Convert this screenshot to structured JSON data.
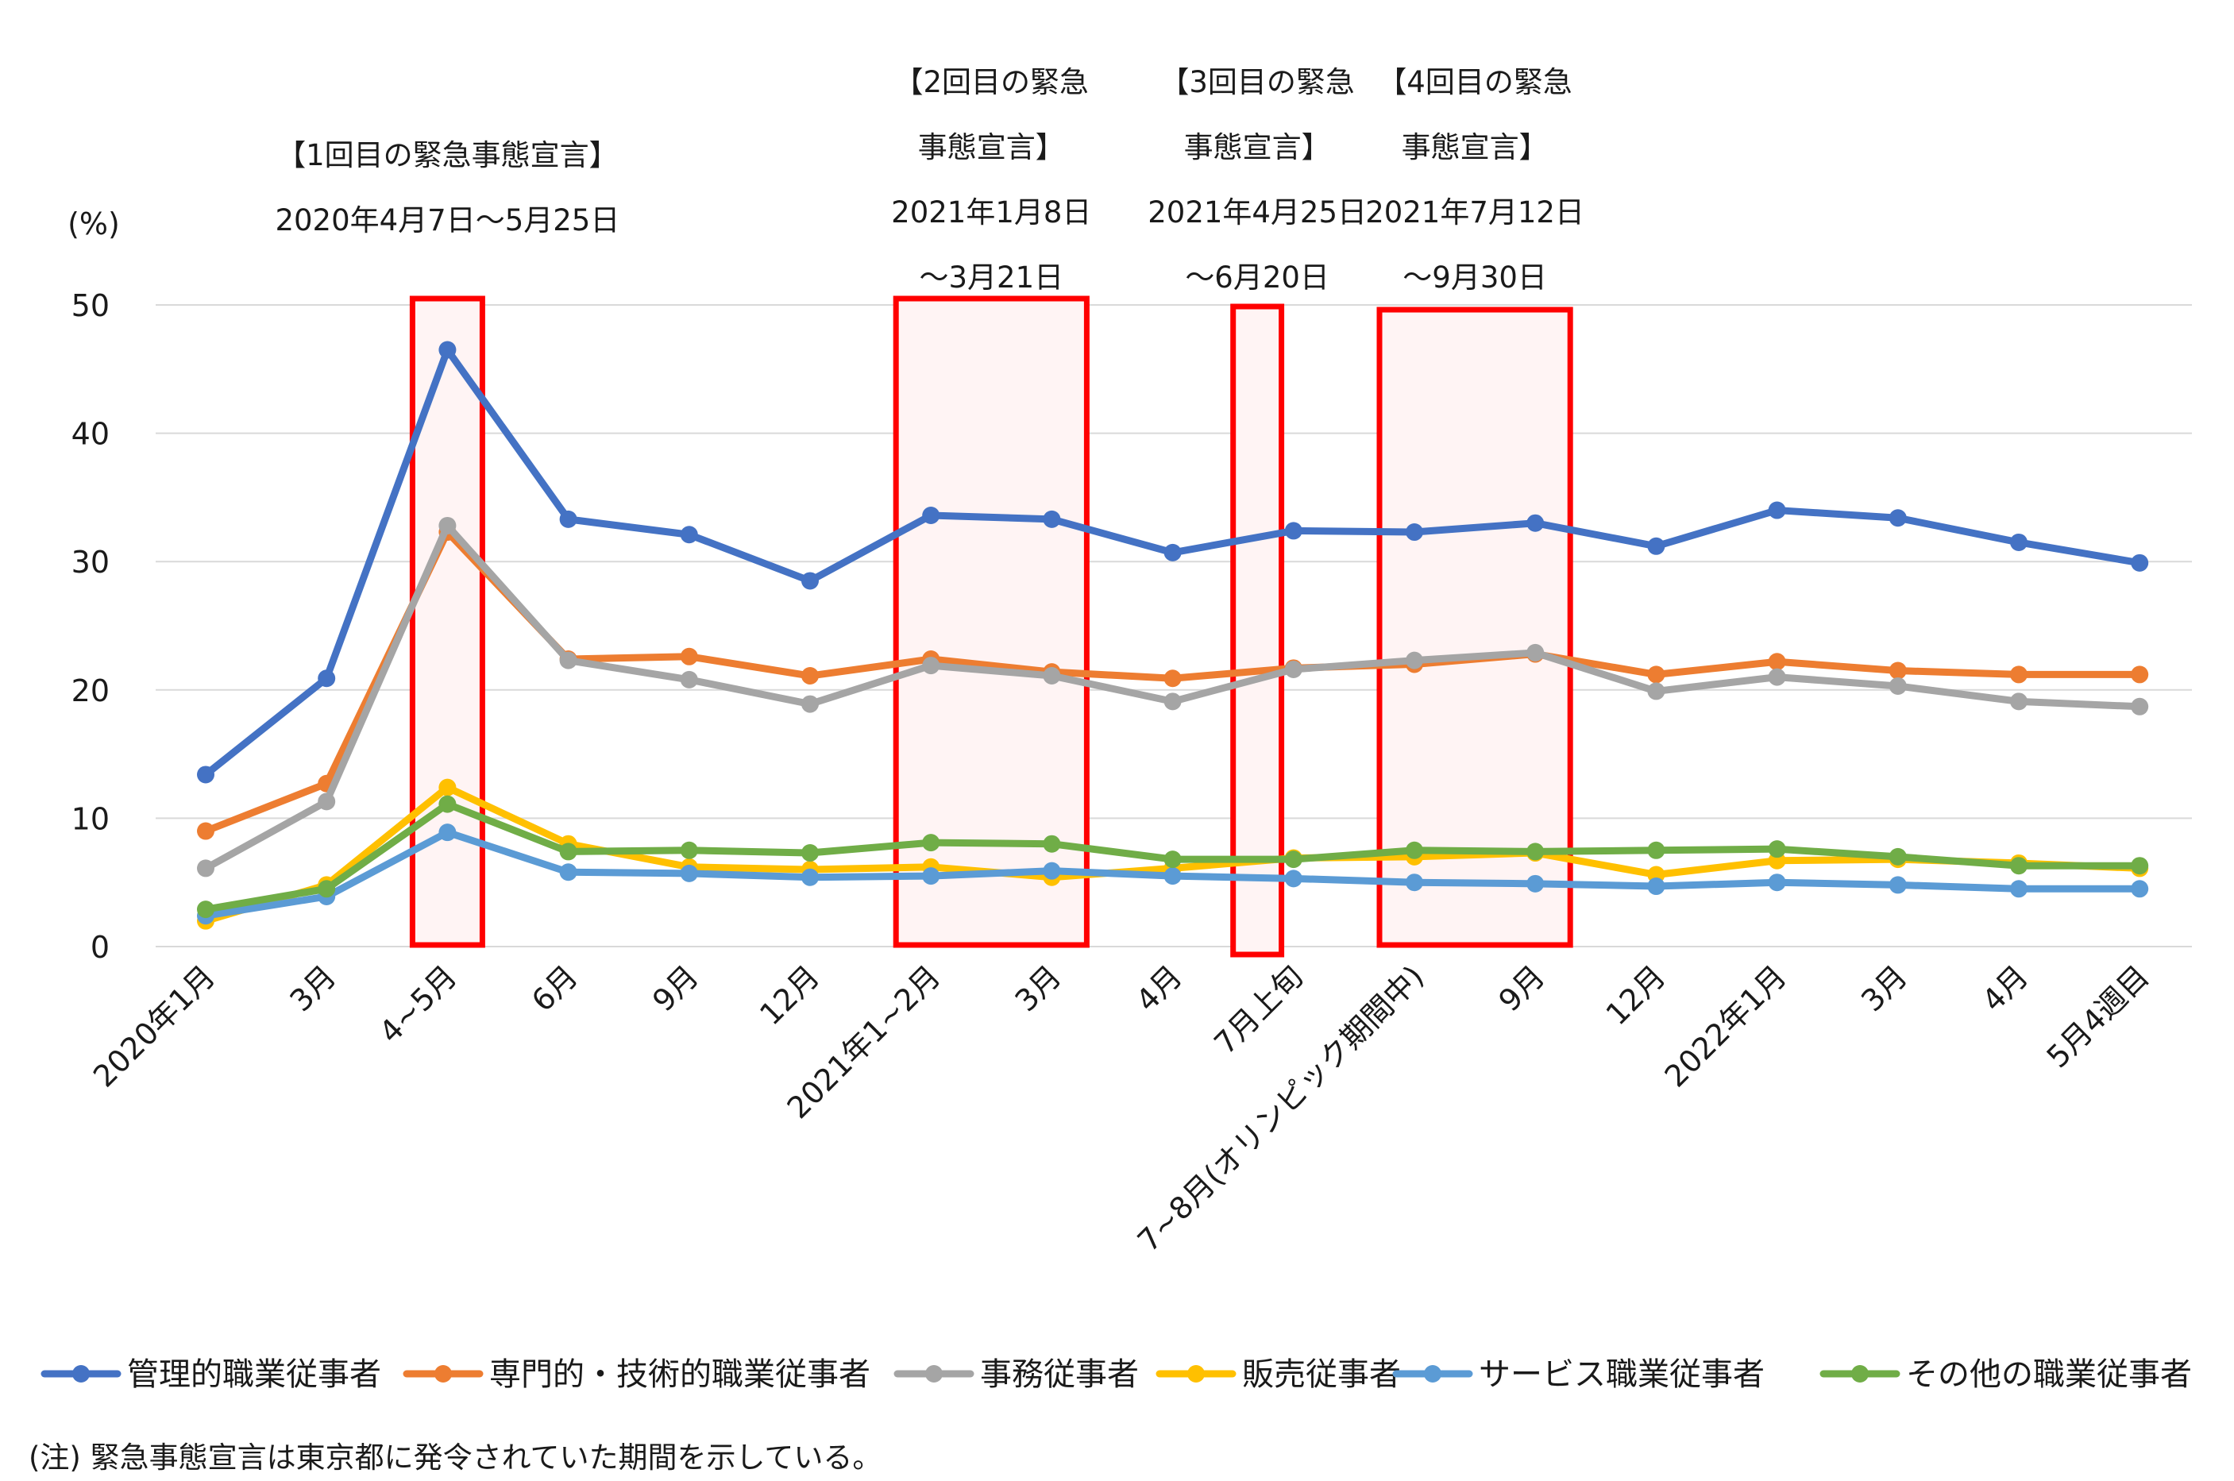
{
  "chart_data": {
    "type": "line",
    "ylabel": "(%)",
    "ylim": [
      0,
      50
    ],
    "yticks": [
      0,
      10,
      20,
      30,
      40,
      50
    ],
    "grid": true,
    "legend_position": "bottom",
    "categories": [
      "2020年1月",
      "3月",
      "4~5月",
      "6月",
      "9月",
      "12月",
      "2021年1~2月",
      "3月",
      "4月",
      "7月上旬",
      "7~8月(オリンピック期間中)",
      "9月",
      "12月",
      "2022年1月",
      "3月",
      "4月",
      "5月4週目"
    ],
    "series": [
      {
        "name": "管理的職業従事者",
        "color": "#4472c4",
        "values": [
          13.4,
          20.9,
          46.5,
          33.3,
          32.1,
          28.5,
          33.6,
          33.3,
          30.7,
          32.4,
          32.3,
          33.0,
          31.2,
          34.0,
          33.4,
          31.5,
          29.9
        ]
      },
      {
        "name": "専門的・技術的職業従事者",
        "color": "#ed7d31",
        "values": [
          9.0,
          12.7,
          32.3,
          22.4,
          22.6,
          21.1,
          22.4,
          21.4,
          20.9,
          21.7,
          22.0,
          22.8,
          21.2,
          22.2,
          21.5,
          21.2,
          21.2
        ]
      },
      {
        "name": "事務従事者",
        "color": "#a5a5a5",
        "values": [
          6.1,
          11.3,
          32.8,
          22.3,
          20.8,
          18.9,
          21.9,
          21.1,
          19.1,
          21.6,
          22.3,
          22.9,
          19.9,
          21.0,
          20.3,
          19.1,
          18.7
        ]
      },
      {
        "name": "販売従事者",
        "color": "#ffc000",
        "values": [
          2.0,
          4.8,
          12.4,
          8.0,
          6.2,
          6.0,
          6.2,
          5.4,
          6.1,
          6.9,
          7.0,
          7.3,
          5.6,
          6.7,
          6.8,
          6.5,
          6.1
        ]
      },
      {
        "name": "サービス職業従事者",
        "color": "#5b9bd5",
        "values": [
          2.4,
          3.9,
          8.9,
          5.8,
          5.7,
          5.4,
          5.5,
          5.9,
          5.5,
          5.3,
          5.0,
          4.9,
          4.7,
          5.0,
          4.8,
          4.5,
          4.5
        ]
      },
      {
        "name": "その他の職業従事者",
        "color": "#70ad47",
        "values": [
          2.9,
          4.5,
          11.1,
          7.4,
          7.5,
          7.3,
          8.1,
          8.0,
          6.8,
          6.8,
          7.5,
          7.4,
          7.5,
          7.6,
          7.0,
          6.3,
          6.3
        ]
      }
    ],
    "periods": [
      {
        "cat_start": 2,
        "cat_end": 2,
        "lines": [
          "【1回目の緊急事態宣言】",
          "2020年4月7日～5月25日"
        ]
      },
      {
        "cat_start": 6,
        "cat_end": 7,
        "lines": [
          "【2回目の緊急",
          "事態宣言】",
          "2021年1月8日",
          "～3月21日"
        ]
      },
      {
        "cat_start": 8.5,
        "cat_end": 8.9,
        "lines": [
          "【3回目の緊急",
          "事態宣言】",
          "2021年4月25日",
          "～6月20日"
        ]
      },
      {
        "cat_start": 10,
        "cat_end": 11,
        "lines": [
          "【4回目の緊急",
          "事態宣言】",
          "2021年7月12日",
          "～9月30日"
        ]
      }
    ]
  },
  "note": "(注) 緊急事態宣言は東京都に発令されていた期間を示している。"
}
